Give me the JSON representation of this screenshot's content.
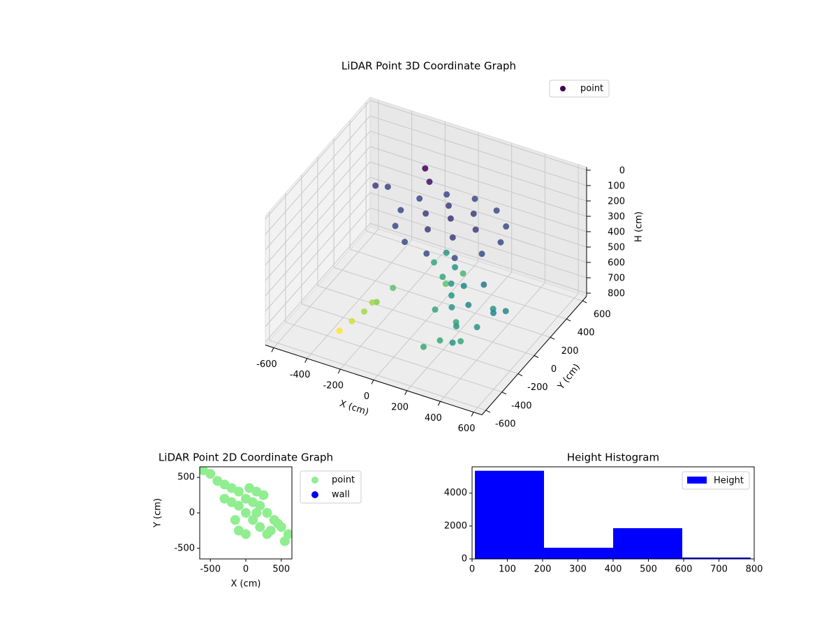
{
  "chart_data": [
    {
      "type": "scatter3d",
      "title": "LiDAR Point 3D Coordinate Graph",
      "xlabel": "X (cm)",
      "ylabel": "Y (cm)",
      "zlabel": "H (cm)",
      "xlim": [
        -650,
        650
      ],
      "ylim": [
        -650,
        650
      ],
      "zlim": [
        -20,
        820
      ],
      "z_inverted": true,
      "colormap": "viridis",
      "legend": "upper right",
      "xticks": [
        -600,
        -400,
        -200,
        0,
        200,
        400,
        600
      ],
      "yticks": [
        -600,
        -400,
        -200,
        0,
        200,
        400,
        600
      ],
      "zticks": [
        0,
        100,
        200,
        300,
        400,
        500,
        600,
        700,
        800
      ],
      "series": [
        {
          "name": "point",
          "color": "#440154",
          "x": [
            400,
            360,
            250,
            100,
            -50,
            -160,
            -200,
            -160,
            -50,
            100,
            250,
            360,
            250,
            175,
            25,
            -50,
            25,
            175,
            100,
            -150,
            -100,
            -400,
            -350,
            150,
            50,
            100,
            0,
            150,
            80,
            200,
            250,
            300,
            350,
            400,
            450,
            300,
            500,
            400,
            200,
            350,
            500,
            450,
            300,
            550,
            420,
            600,
            -350,
            -300,
            -250,
            -200,
            -250,
            -150
          ],
          "y": [
            100,
            250,
            360,
            400,
            360,
            250,
            100,
            -50,
            -160,
            -200,
            -160,
            -50,
            100,
            230,
            230,
            100,
            -30,
            -30,
            100,
            300,
            250,
            200,
            250,
            50,
            150,
            0,
            100,
            150,
            80,
            -100,
            -200,
            -300,
            -350,
            -450,
            -500,
            -150,
            -200,
            -300,
            -300,
            -550,
            -400,
            -600,
            -650,
            -300,
            -150,
            -250,
            -350,
            -300,
            -250,
            -200,
            -150,
            -100
          ],
          "z": [
            230,
            230,
            230,
            230,
            230,
            230,
            230,
            230,
            230,
            230,
            230,
            230,
            200,
            200,
            200,
            200,
            200,
            200,
            180,
            60,
            100,
            200,
            220,
            450,
            450,
            500,
            500,
            550,
            600,
            450,
            450,
            450,
            500,
            450,
            500,
            400,
            450,
            400,
            500,
            500,
            450,
            450,
            500,
            400,
            350,
            400,
            800,
            750,
            700,
            650,
            700,
            600
          ]
        }
      ]
    },
    {
      "type": "scatter",
      "title": "LiDAR Point 2D Coordinate Graph",
      "xlabel": "X (cm)",
      "ylabel": "Y (cm)",
      "xlim": [
        -650,
        650
      ],
      "ylim": [
        -650,
        650
      ],
      "xticks": [
        -500,
        0,
        500
      ],
      "yticks": [
        -500,
        0,
        500
      ],
      "legend": "outside right",
      "series": [
        {
          "name": "point",
          "color": "#90ee90",
          "x": [
            -600,
            -500,
            -400,
            -300,
            -200,
            -100,
            -300,
            -200,
            -100,
            0,
            100,
            200,
            0,
            100,
            200,
            300,
            0,
            -100,
            150,
            300,
            400,
            500,
            600,
            550,
            450,
            250,
            -150,
            350,
            50,
            150
          ],
          "y": [
            600,
            550,
            450,
            400,
            350,
            300,
            200,
            150,
            100,
            200,
            150,
            100,
            0,
            -100,
            -200,
            -300,
            -300,
            -250,
            0,
            0,
            -100,
            -200,
            -300,
            -400,
            -150,
            250,
            -100,
            -250,
            350,
            300
          ]
        },
        {
          "name": "wall",
          "color": "#0000ff",
          "x": [],
          "y": []
        }
      ]
    },
    {
      "type": "histogram",
      "title": "Height Histogram",
      "name": "Height",
      "color": "#0000ff",
      "legend": "upper right",
      "bins": [
        8,
        204,
        400,
        596,
        790
      ],
      "counts": [
        5360,
        680,
        1870,
        85
      ],
      "xlim": [
        0,
        800
      ],
      "ylim": [
        0,
        5600
      ],
      "xticks": [
        0,
        100,
        200,
        300,
        400,
        500,
        600,
        700,
        800
      ],
      "yticks": [
        0,
        2000,
        4000
      ]
    }
  ]
}
